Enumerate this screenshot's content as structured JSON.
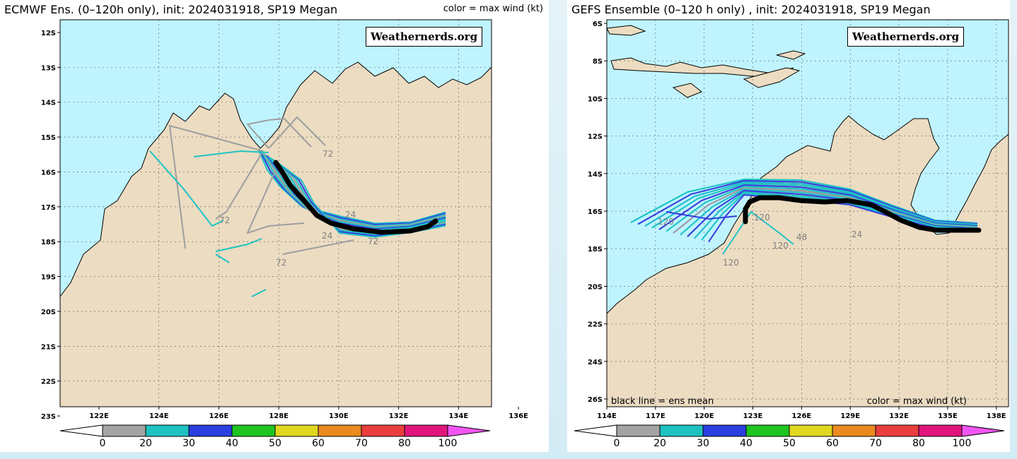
{
  "colorbar": {
    "ticks": [
      "0",
      "20",
      "30",
      "40",
      "50",
      "60",
      "70",
      "80",
      "100"
    ],
    "colors": [
      "#a4a4a4",
      "#1fc2c2",
      "#2b3ee0",
      "#1fc420",
      "#e0d81f",
      "#ea8a20",
      "#ea3e3e",
      "#e0157c",
      "#f256f2"
    ]
  },
  "colors": {
    "land": "#ecdcc2",
    "ocean": "#bff4ff",
    "mean": "#000000",
    "member_gray": "#9e9e9e",
    "member_cyan": "#1ec4c4",
    "member_blue": "#3a3ae0"
  },
  "left": {
    "title": "ECMWF Ens. (0–120h only), init: 2024031918, SP19 Megan",
    "legend": "color = max wind (kt)",
    "watermark": "Weathernerds.org",
    "y_labels": [
      "12S",
      "13S",
      "14S",
      "15S",
      "16S",
      "17S",
      "18S",
      "19S",
      "20S",
      "21S",
      "22S",
      "23S"
    ],
    "x_labels": [
      "122E",
      "124E",
      "126E",
      "128E",
      "130E",
      "132E",
      "134E",
      "136E"
    ],
    "hour_labels": [
      "72",
      "72",
      "72",
      "24",
      "24",
      "72"
    ]
  },
  "right": {
    "title": "GEFS Ensemble (0–120 h only) , init: 2024031918, SP19 Megan",
    "watermark": "Weathernerds.org",
    "note_left": "black line = ens mean",
    "note_right": "color = max wind (kt)",
    "y_labels": [
      "6S",
      "8S",
      "10S",
      "12S",
      "14S",
      "16S",
      "18S",
      "20S",
      "22S",
      "24S",
      "26S"
    ],
    "x_labels": [
      "114E",
      "117E",
      "120E",
      "123E",
      "126E",
      "129E",
      "132E",
      "135E",
      "138E"
    ],
    "hour_labels": [
      "120",
      "120",
      "120",
      "120",
      "48",
      "24"
    ]
  }
}
